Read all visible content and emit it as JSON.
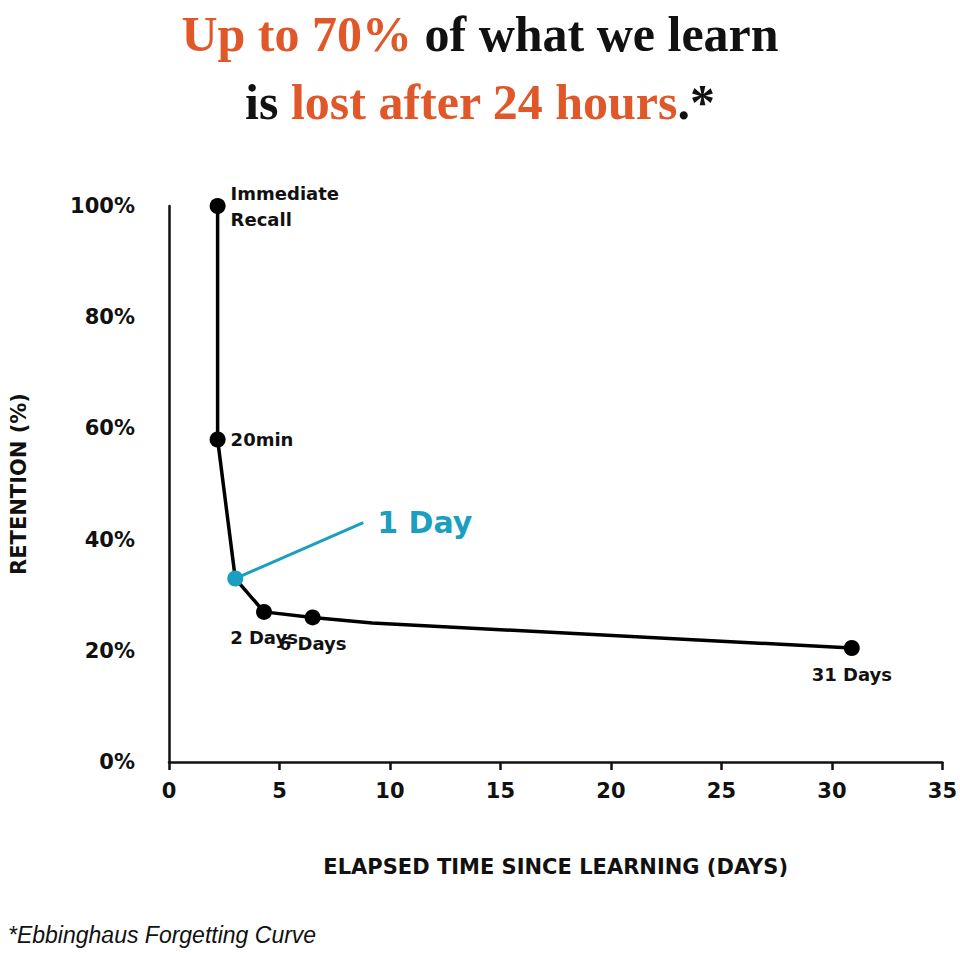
{
  "chart_data": {
    "type": "line",
    "title": [
      "Up to 70% of what we learn",
      "is lost after 24 hours.*"
    ],
    "title_emphasis": [
      "Up to 70%",
      "lost after 24 hours"
    ],
    "emphasis_color": "#e0572a",
    "footnote": "*Ebbinghaus Forgetting Curve",
    "x_label": "ELAPSED TIME SINCE LEARNING (DAYS)",
    "y_label": "RETENTION (%)",
    "x": [
      2.2,
      2.2,
      3,
      4.3,
      6.5,
      9.2,
      30.9
    ],
    "values": [
      100,
      58,
      33,
      27,
      26,
      25,
      20.5
    ],
    "point_labels": [
      "Immediate Recall",
      "20min",
      "1 Day",
      "2 Days",
      "6 Days",
      null,
      "31 Days"
    ],
    "color": "#000000",
    "colors": [
      "#000000",
      "#000000",
      "#1a9fc0",
      "#000000",
      "#000000",
      "#000000",
      "#000000"
    ],
    "marker": "circle",
    "xlim": [
      0,
      35
    ],
    "xticks": [
      0,
      5,
      10,
      15,
      20,
      25,
      30,
      35
    ],
    "ylim": [
      0,
      100
    ],
    "yticks": [
      {
        "value": 0,
        "label": "0%"
      },
      {
        "value": 20,
        "label": "20%"
      },
      {
        "value": 40,
        "label": "40%"
      },
      {
        "value": 60,
        "label": "60%"
      },
      {
        "value": 80,
        "label": "80%"
      },
      {
        "value": 100,
        "label": "100%"
      }
    ],
    "grid": false
  }
}
